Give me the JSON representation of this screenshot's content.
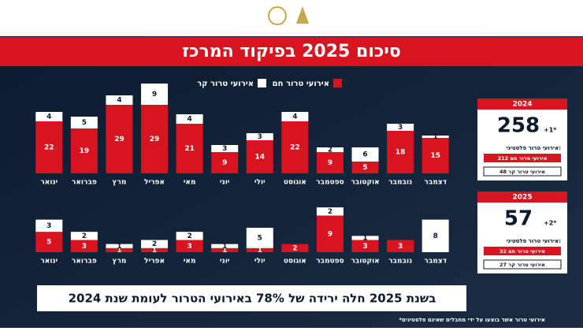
{
  "header": {
    "title": "סיכום 2025 בפיקוד המרכז"
  },
  "chart_data": [
    {
      "type": "stacked-bar",
      "categories": [
        "ינואר",
        "פברואר",
        "מרץ",
        "אפריל",
        "מאי",
        "יוני",
        "יולי",
        "אוגוסט",
        "ספטמבר",
        "אוקטובר",
        "נובמבר",
        "דצמבר"
      ],
      "series": [
        {
          "name": "אירועי טרור חם",
          "color": "#d7141f",
          "values": [
            22,
            19,
            29,
            29,
            21,
            9,
            14,
            22,
            9,
            5,
            18,
            15
          ]
        },
        {
          "name": "אירועי טרור קר",
          "color": "#ffffff",
          "values": [
            4,
            5,
            4,
            9,
            4,
            3,
            3,
            4,
            2,
            6,
            3,
            1
          ]
        }
      ],
      "ylim": [
        0,
        40
      ]
    },
    {
      "type": "stacked-bar",
      "categories": [
        "ינואר",
        "פברואר",
        "מרץ",
        "אפריל",
        "מאי",
        "יוני",
        "יולי",
        "אוגוסט",
        "ספטמבר",
        "אוקטובר",
        "נובמבר",
        "דצמבר"
      ],
      "series": [
        {
          "name": "אירועי טרור חם",
          "color": "#d7141f",
          "values": [
            5,
            3,
            1,
            1,
            3,
            1,
            1,
            2,
            9,
            3,
            3,
            null
          ]
        },
        {
          "name": "אירועי טרור קר",
          "color": "#ffffff",
          "values": [
            3,
            2,
            1,
            2,
            2,
            1,
            5,
            null,
            2,
            1,
            null,
            8
          ]
        }
      ],
      "ylim": [
        0,
        12
      ]
    }
  ],
  "summary": [
    {
      "year": "2024",
      "total": 258,
      "extra": "+1*",
      "caption": "אירועי טרור פלסטיני:",
      "hot": "212 אירועי טרור חם",
      "cold": "48 אירועי טרור קר"
    },
    {
      "year": "2025",
      "total": 57,
      "extra": "+2*",
      "caption": "אירועי טרור פלסטיני:",
      "hot": "32 אירועי טרור חם",
      "cold": "27 אירועי טרור קר"
    }
  ],
  "banner": "בשנת 2025 חלה ירידה של 78% באירועי הטרור לעומת שנת 2024",
  "footnote": "*אירועי טרור אשר בוצעו על ידי מחבלים שאינם פלסטינים"
}
